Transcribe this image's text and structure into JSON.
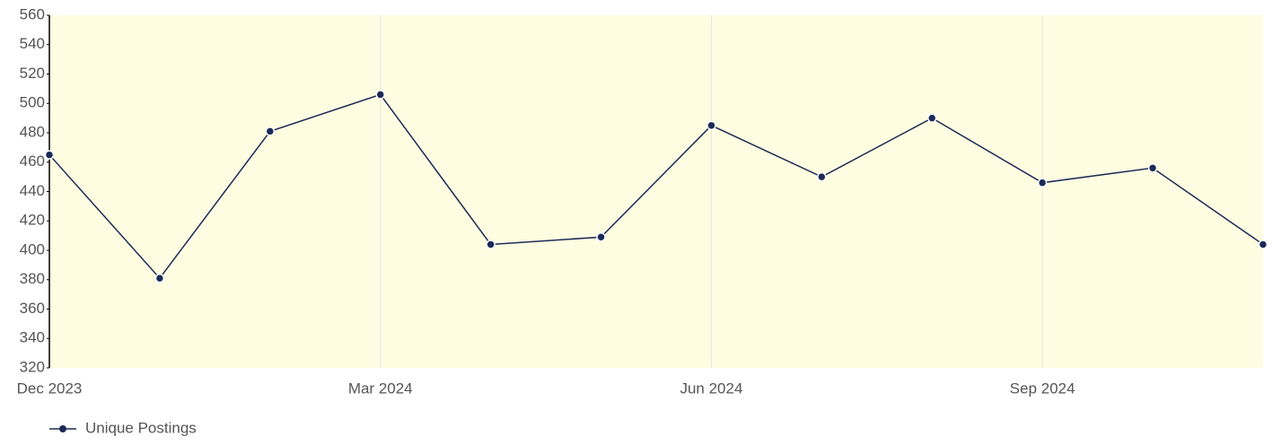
{
  "chart_data": {
    "type": "line",
    "categories": [
      "Dec 2023",
      null,
      null,
      "Mar 2024",
      null,
      null,
      "Jun 2024",
      null,
      null,
      "Sep 2024",
      null,
      null
    ],
    "series": [
      {
        "name": "Unique Postings",
        "color": "#1b2a57",
        "values": [
          465,
          381,
          481,
          506,
          404,
          409,
          485,
          450,
          490,
          446,
          456,
          404
        ]
      }
    ],
    "ylim": [
      320,
      560
    ],
    "yticks": [
      320,
      340,
      360,
      380,
      400,
      420,
      440,
      460,
      480,
      500,
      520,
      540,
      560
    ],
    "grid": true,
    "background": "#fffde1",
    "legend": "bottom-left"
  }
}
